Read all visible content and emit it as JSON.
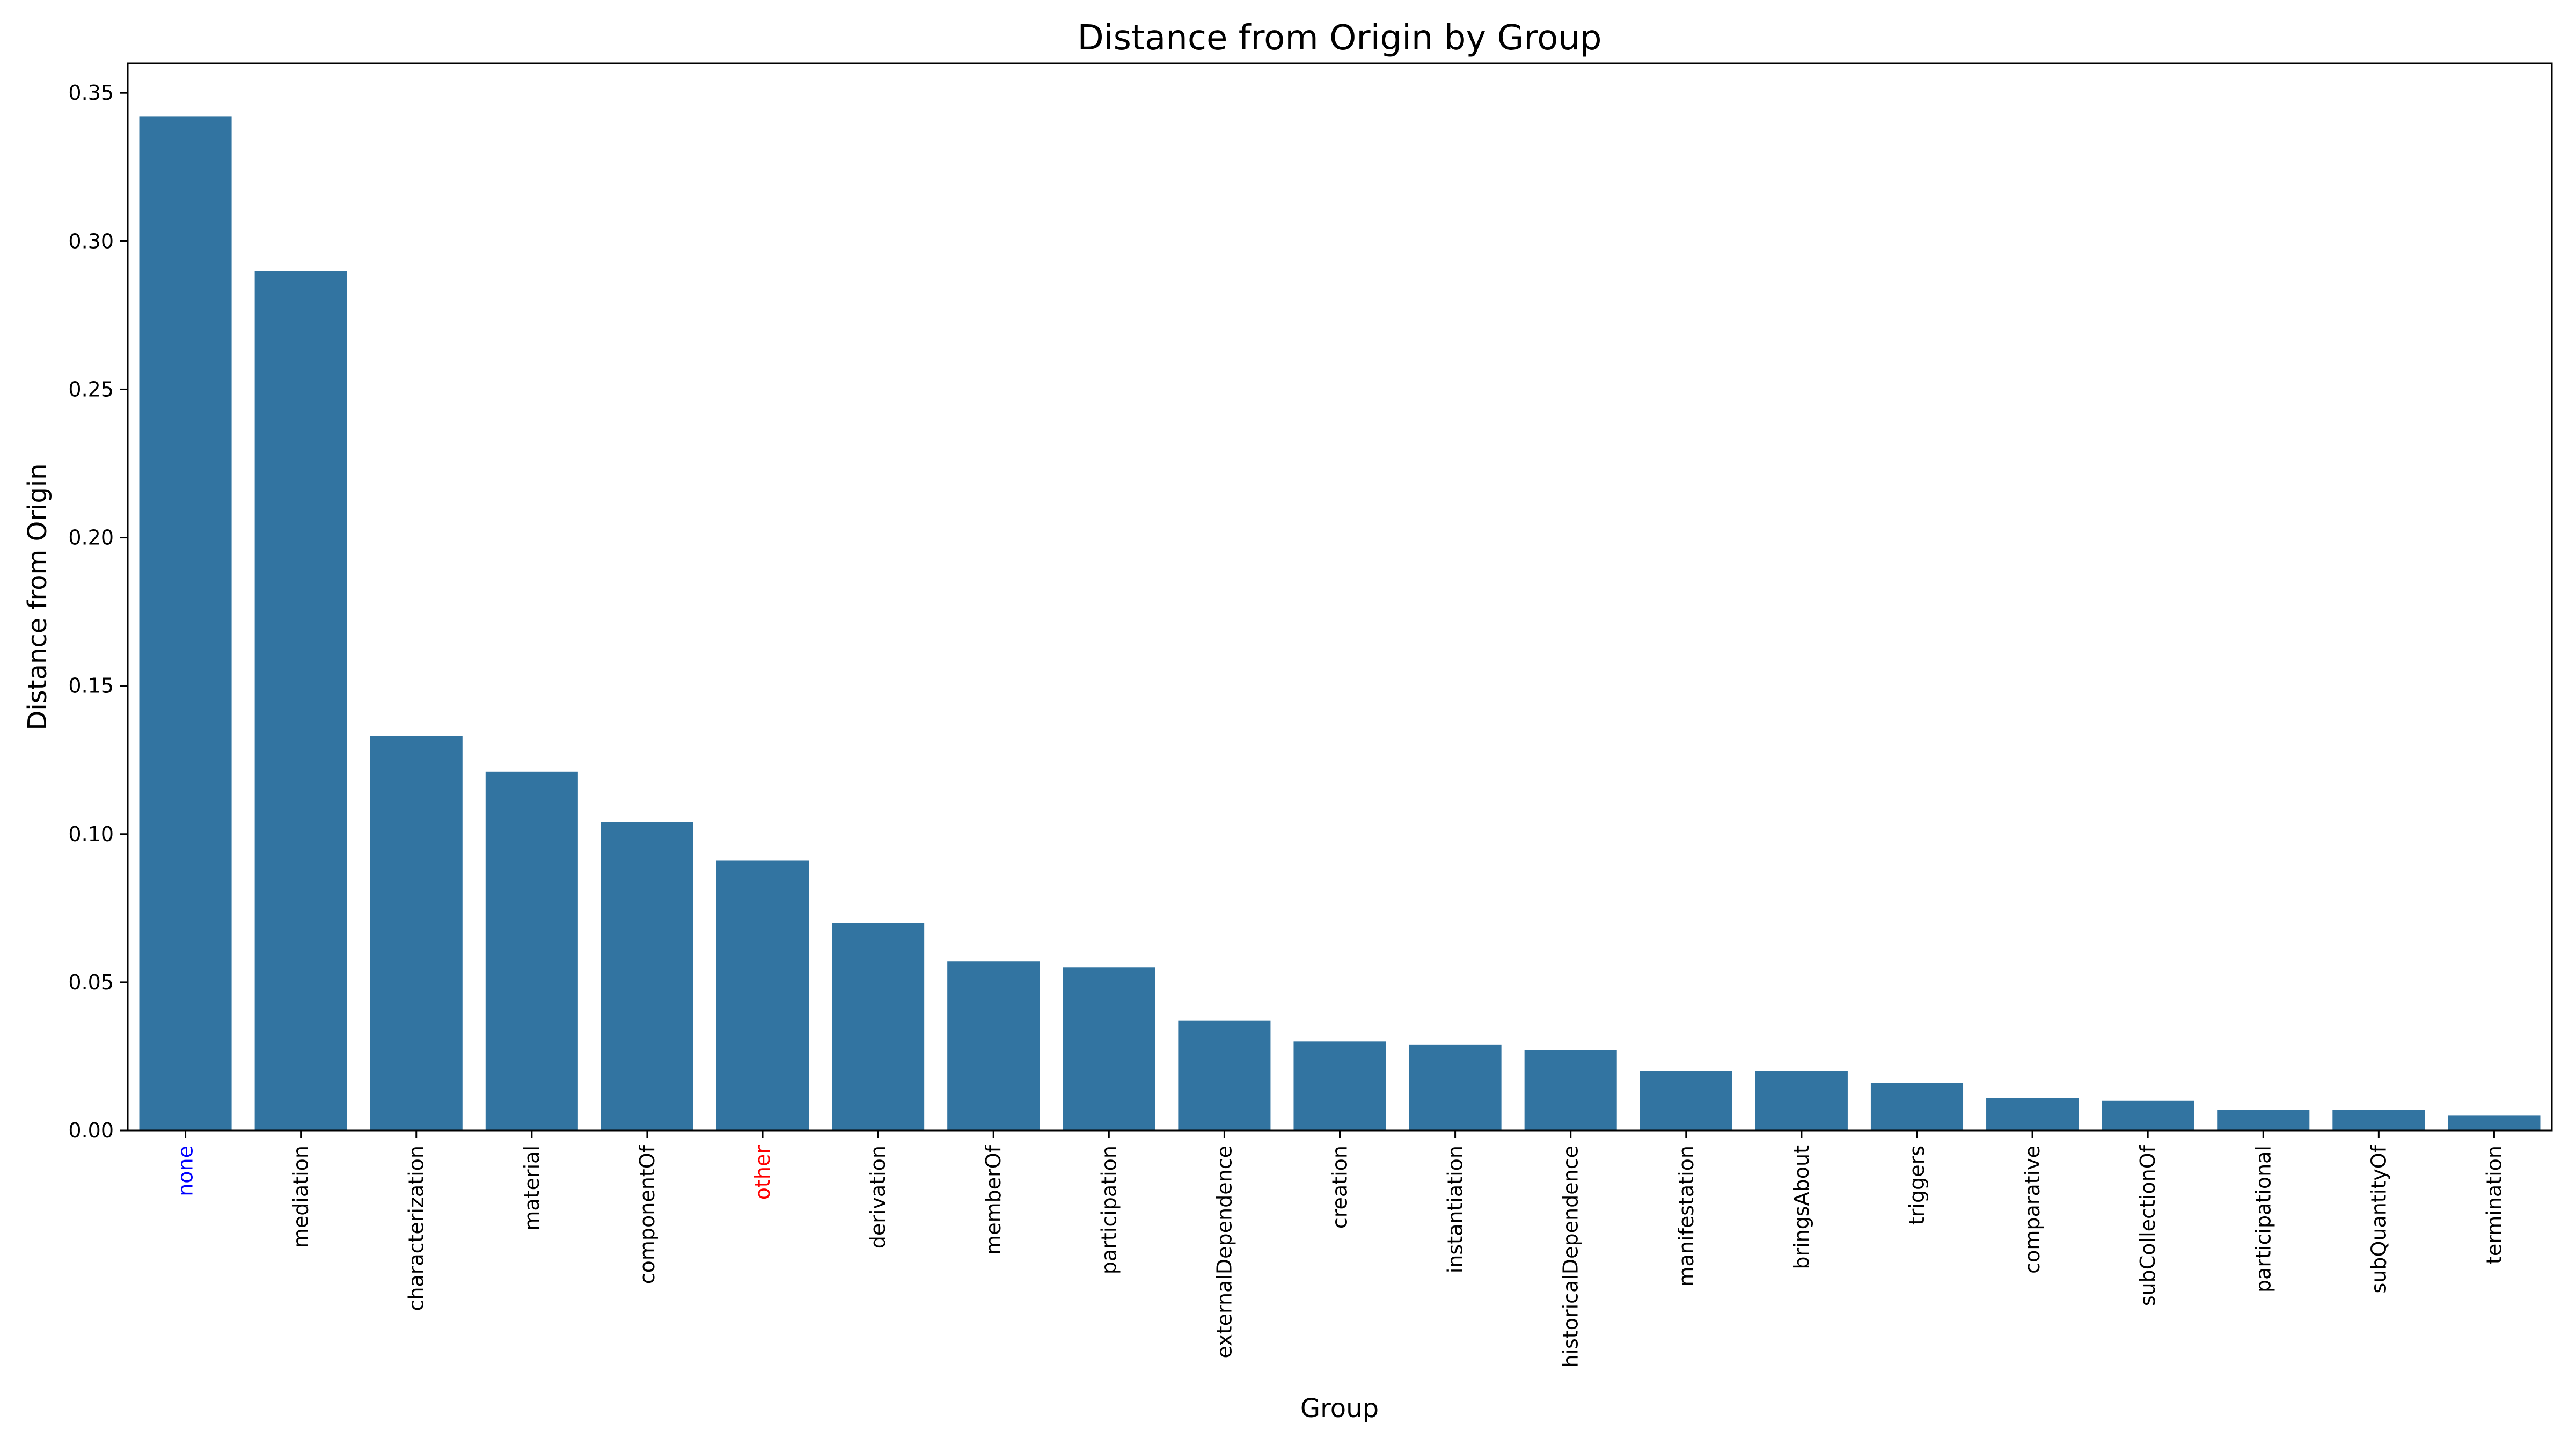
{
  "chart_data": {
    "type": "bar",
    "title": "Distance from Origin by Group",
    "xlabel": "Group",
    "ylabel": "Distance from Origin",
    "ylim": [
      0,
      0.36
    ],
    "yticks": [
      "0.00",
      "0.05",
      "0.10",
      "0.15",
      "0.20",
      "0.25",
      "0.30",
      "0.35"
    ],
    "grid": false,
    "bar_color": "#3274a1",
    "categories": [
      "none",
      "mediation",
      "characterization",
      "material",
      "componentOf",
      "other",
      "derivation",
      "memberOf",
      "participation",
      "externalDependence",
      "creation",
      "instantiation",
      "historicalDependence",
      "manifestation",
      "bringsAbout",
      "triggers",
      "comparative",
      "subCollectionOf",
      "participational",
      "subQuantityOf",
      "termination"
    ],
    "values": [
      0.342,
      0.29,
      0.133,
      0.121,
      0.104,
      0.091,
      0.07,
      0.057,
      0.055,
      0.037,
      0.03,
      0.029,
      0.027,
      0.02,
      0.02,
      0.016,
      0.011,
      0.01,
      0.007,
      0.007,
      0.005
    ],
    "highlighted_labels": [
      {
        "label": "none",
        "color": "#0000ff"
      },
      {
        "label": "other",
        "color": "#ff0000"
      }
    ]
  }
}
